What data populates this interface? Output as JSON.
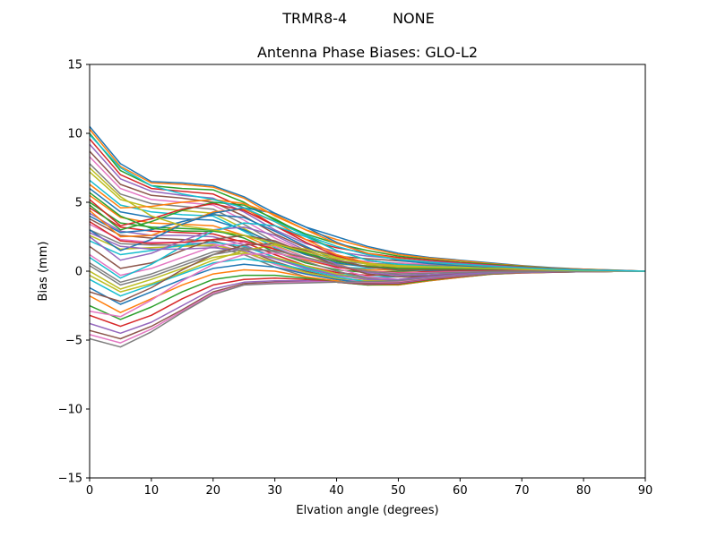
{
  "figure": {
    "suptitle": "TRMR8-4          NONE"
  },
  "chart_data": {
    "type": "line",
    "title": "Antenna Phase Biases: GLO-L2",
    "xlabel": "Elvation angle (degrees)",
    "ylabel": "Bias (mm)",
    "xlim": [
      0,
      90
    ],
    "ylim": [
      -15,
      15
    ],
    "xticks": [
      0,
      10,
      20,
      30,
      40,
      50,
      60,
      70,
      80,
      90
    ],
    "xtick_labels": [
      "0",
      "10",
      "20",
      "30",
      "40",
      "50",
      "60",
      "70",
      "80",
      "90"
    ],
    "yticks": [
      -15,
      -10,
      -5,
      0,
      5,
      10,
      15
    ],
    "ytick_labels": [
      "−15",
      "−10",
      "−5",
      "0",
      "5",
      "10",
      "15"
    ],
    "grid": false,
    "legend": "none",
    "colors": [
      "#1f77b4",
      "#ff7f0e",
      "#2ca02c",
      "#d62728",
      "#9467bd",
      "#8c564b",
      "#e377c2",
      "#7f7f7f",
      "#bcbd22",
      "#17becf"
    ],
    "x": [
      0,
      5,
      10,
      15,
      20,
      25,
      30,
      35,
      40,
      45,
      50,
      55,
      60,
      65,
      70,
      75,
      80,
      85,
      90
    ],
    "series": [
      {
        "values": [
          10.5,
          7.8,
          6.5,
          6.4,
          6.2,
          5.4,
          4.2,
          3.2,
          2.5,
          1.8,
          1.3,
          1.0,
          0.8,
          0.6,
          0.4,
          0.25,
          0.15,
          0.08,
          0.0
        ]
      },
      {
        "values": [
          10.3,
          7.6,
          6.4,
          6.3,
          6.1,
          5.3,
          4.0,
          3.0,
          2.3,
          1.7,
          1.2,
          0.95,
          0.75,
          0.55,
          0.38,
          0.22,
          0.14,
          0.07,
          0.0
        ]
      },
      {
        "values": [
          10.0,
          7.3,
          6.2,
          6.0,
          5.9,
          5.0,
          3.7,
          2.7,
          2.0,
          1.5,
          1.1,
          0.85,
          0.65,
          0.5,
          0.34,
          0.2,
          0.12,
          0.06,
          0.0
        ]
      },
      {
        "values": [
          9.6,
          7.0,
          6.0,
          5.8,
          5.6,
          4.6,
          3.3,
          2.3,
          1.7,
          1.3,
          1.0,
          0.8,
          0.6,
          0.45,
          0.3,
          0.18,
          0.1,
          0.05,
          0.0
        ]
      },
      {
        "values": [
          9.2,
          6.7,
          5.8,
          5.5,
          5.3,
          4.3,
          3.0,
          2.0,
          1.4,
          1.1,
          0.9,
          0.7,
          0.55,
          0.4,
          0.28,
          0.16,
          0.1,
          0.05,
          0.0
        ]
      },
      {
        "values": [
          8.7,
          6.3,
          5.5,
          5.3,
          5.0,
          4.0,
          2.7,
          1.7,
          1.1,
          0.9,
          0.75,
          0.6,
          0.5,
          0.35,
          0.25,
          0.15,
          0.08,
          0.04,
          0.0
        ]
      },
      {
        "values": [
          8.3,
          6.0,
          5.2,
          5.0,
          4.8,
          3.7,
          2.4,
          1.4,
          0.9,
          0.7,
          0.6,
          0.5,
          0.42,
          0.3,
          0.2,
          0.12,
          0.07,
          0.03,
          0.0
        ]
      },
      {
        "values": [
          7.8,
          5.6,
          4.9,
          4.7,
          4.5,
          3.4,
          2.1,
          1.2,
          0.7,
          0.55,
          0.5,
          0.42,
          0.35,
          0.25,
          0.17,
          0.1,
          0.06,
          0.03,
          0.0
        ]
      },
      {
        "values": [
          7.2,
          5.2,
          4.6,
          4.4,
          4.2,
          3.1,
          1.9,
          1.0,
          0.5,
          0.4,
          0.4,
          0.35,
          0.3,
          0.22,
          0.15,
          0.09,
          0.05,
          0.02,
          0.0
        ]
      },
      {
        "values": [
          6.6,
          4.8,
          4.3,
          4.1,
          4.0,
          2.9,
          1.7,
          0.8,
          0.3,
          0.2,
          0.3,
          0.3,
          0.25,
          0.18,
          0.12,
          0.07,
          0.04,
          0.02,
          0.0
        ]
      },
      {
        "values": [
          6.0,
          4.3,
          3.9,
          3.8,
          3.7,
          3.0,
          2.0,
          1.2,
          0.6,
          0.3,
          0.2,
          0.2,
          0.2,
          0.15,
          0.1,
          0.06,
          0.03,
          0.01,
          0.0
        ]
      },
      {
        "values": [
          5.5,
          3.9,
          3.5,
          3.4,
          3.3,
          2.6,
          1.6,
          0.8,
          0.3,
          0.1,
          0.1,
          0.15,
          0.15,
          0.12,
          0.08,
          0.05,
          0.03,
          0.01,
          0.0
        ]
      },
      {
        "values": [
          5.0,
          3.5,
          3.2,
          3.1,
          3.0,
          2.4,
          1.4,
          0.6,
          0.1,
          -0.1,
          0.0,
          0.1,
          0.1,
          0.08,
          0.05,
          0.03,
          0.02,
          0.01,
          0.0
        ]
      },
      {
        "values": [
          4.6,
          3.2,
          2.9,
          2.8,
          2.7,
          2.1,
          1.2,
          0.4,
          -0.1,
          -0.3,
          -0.2,
          0.0,
          0.05,
          0.05,
          0.03,
          0.02,
          0.01,
          0.0,
          0.0
        ]
      },
      {
        "values": [
          4.2,
          2.9,
          2.6,
          2.6,
          2.5,
          1.9,
          1.0,
          0.2,
          -0.3,
          -0.5,
          -0.4,
          -0.15,
          0.0,
          0.02,
          0.01,
          0.01,
          0.0,
          0.0,
          0.0
        ]
      },
      {
        "values": [
          3.8,
          2.6,
          2.4,
          2.3,
          2.2,
          1.6,
          0.7,
          0.0,
          -0.5,
          -0.7,
          -0.6,
          -0.3,
          -0.1,
          -0.05,
          -0.03,
          -0.02,
          -0.01,
          0.0,
          0.0
        ]
      },
      {
        "values": [
          3.4,
          2.3,
          2.1,
          2.1,
          2.0,
          1.4,
          0.5,
          -0.2,
          -0.6,
          -0.8,
          -0.7,
          -0.4,
          -0.2,
          -0.1,
          -0.06,
          -0.04,
          -0.02,
          -0.01,
          0.0
        ]
      },
      {
        "values": [
          3.0,
          2.0,
          1.9,
          1.9,
          1.8,
          1.2,
          0.3,
          -0.4,
          -0.8,
          -1.0,
          -0.9,
          -0.5,
          -0.3,
          -0.15,
          -0.1,
          -0.06,
          -0.03,
          -0.01,
          0.0
        ]
      },
      {
        "values": [
          2.6,
          1.6,
          1.7,
          1.8,
          1.9,
          1.4,
          0.6,
          -0.1,
          -0.5,
          -0.7,
          -0.7,
          -0.45,
          -0.25,
          -0.12,
          -0.08,
          -0.05,
          -0.03,
          -0.01,
          0.0
        ]
      },
      {
        "values": [
          2.2,
          1.2,
          1.5,
          1.9,
          2.1,
          1.8,
          1.0,
          0.3,
          -0.2,
          -0.4,
          -0.4,
          -0.3,
          -0.2,
          -0.1,
          -0.06,
          -0.04,
          -0.02,
          -0.01,
          0.0
        ]
      },
      {
        "values": [
          4.0,
          2.8,
          3.0,
          3.6,
          4.1,
          3.9,
          2.9,
          1.8,
          0.8,
          0.3,
          0.1,
          0.05,
          0.05,
          0.04,
          0.03,
          0.02,
          0.01,
          0.0,
          0.0
        ]
      },
      {
        "values": [
          4.4,
          2.5,
          2.6,
          3.4,
          4.3,
          4.5,
          3.6,
          2.3,
          1.2,
          0.6,
          0.3,
          0.2,
          0.15,
          0.1,
          0.06,
          0.04,
          0.02,
          0.01,
          0.0
        ]
      },
      {
        "values": [
          4.8,
          3.0,
          3.6,
          4.4,
          5.0,
          4.8,
          3.8,
          2.6,
          1.5,
          0.8,
          0.5,
          0.35,
          0.25,
          0.18,
          0.12,
          0.07,
          0.04,
          0.02,
          0.0
        ]
      },
      {
        "values": [
          5.2,
          3.3,
          3.8,
          4.5,
          4.9,
          4.4,
          3.3,
          2.1,
          1.1,
          0.5,
          0.25,
          0.2,
          0.15,
          0.1,
          0.07,
          0.04,
          0.02,
          0.01,
          0.0
        ]
      },
      {
        "values": [
          2.5,
          0.8,
          1.3,
          2.2,
          3.0,
          3.2,
          2.6,
          1.5,
          0.5,
          -0.1,
          -0.3,
          -0.25,
          -0.15,
          -0.08,
          -0.05,
          -0.03,
          -0.02,
          -0.01,
          0.0
        ]
      },
      {
        "values": [
          1.8,
          0.2,
          0.6,
          1.5,
          2.3,
          2.6,
          2.2,
          1.3,
          0.4,
          -0.2,
          -0.4,
          -0.35,
          -0.2,
          -0.1,
          -0.06,
          -0.04,
          -0.02,
          -0.01,
          0.0
        ]
      },
      {
        "values": [
          1.2,
          -0.3,
          0.2,
          1.0,
          1.8,
          2.1,
          1.8,
          1.0,
          0.2,
          -0.4,
          -0.6,
          -0.45,
          -0.25,
          -0.12,
          -0.07,
          -0.04,
          -0.02,
          -0.01,
          0.0
        ]
      },
      {
        "values": [
          0.6,
          -0.8,
          -0.2,
          0.6,
          1.4,
          1.7,
          1.4,
          0.7,
          0.0,
          -0.5,
          -0.7,
          -0.5,
          -0.3,
          -0.15,
          -0.08,
          -0.05,
          -0.03,
          -0.01,
          0.0
        ]
      },
      {
        "values": [
          0.0,
          -1.3,
          -0.6,
          0.2,
          1.0,
          1.3,
          1.0,
          0.4,
          -0.2,
          -0.6,
          -0.8,
          -0.55,
          -0.35,
          -0.18,
          -0.1,
          -0.06,
          -0.03,
          -0.01,
          0.0
        ]
      },
      {
        "values": [
          -0.6,
          -1.8,
          -1.0,
          -0.2,
          0.6,
          0.9,
          0.6,
          0.1,
          -0.4,
          -0.8,
          -0.9,
          -0.6,
          -0.4,
          -0.2,
          -0.12,
          -0.07,
          -0.04,
          -0.02,
          0.0
        ]
      },
      {
        "values": [
          -1.2,
          -2.4,
          -1.5,
          -0.6,
          0.2,
          0.5,
          0.3,
          -0.2,
          -0.6,
          -0.9,
          -1.0,
          -0.7,
          -0.45,
          -0.22,
          -0.13,
          -0.08,
          -0.04,
          -0.02,
          0.0
        ]
      },
      {
        "values": [
          -1.8,
          -3.0,
          -2.0,
          -1.0,
          -0.2,
          0.1,
          0.0,
          -0.4,
          -0.7,
          -1.0,
          -1.0,
          -0.7,
          -0.45,
          -0.22,
          -0.13,
          -0.08,
          -0.04,
          -0.02,
          0.0
        ]
      },
      {
        "values": [
          -2.5,
          -3.5,
          -2.6,
          -1.5,
          -0.6,
          -0.3,
          -0.3,
          -0.5,
          -0.8,
          -1.0,
          -0.95,
          -0.65,
          -0.4,
          -0.2,
          -0.12,
          -0.07,
          -0.04,
          -0.02,
          0.0
        ]
      },
      {
        "values": [
          -3.2,
          -4.0,
          -3.2,
          -2.0,
          -1.0,
          -0.6,
          -0.5,
          -0.6,
          -0.8,
          -0.95,
          -0.9,
          -0.6,
          -0.38,
          -0.18,
          -0.11,
          -0.07,
          -0.04,
          -0.02,
          0.0
        ]
      },
      {
        "values": [
          -3.8,
          -4.5,
          -3.7,
          -2.5,
          -1.3,
          -0.8,
          -0.7,
          -0.7,
          -0.8,
          -0.9,
          -0.85,
          -0.55,
          -0.35,
          -0.17,
          -0.1,
          -0.06,
          -0.03,
          -0.01,
          0.0
        ]
      },
      {
        "values": [
          -4.3,
          -4.9,
          -4.0,
          -2.8,
          -1.5,
          -0.9,
          -0.8,
          -0.8,
          -0.8,
          -0.85,
          -0.8,
          -0.5,
          -0.32,
          -0.16,
          -0.1,
          -0.06,
          -0.03,
          -0.01,
          0.0
        ]
      },
      {
        "values": [
          -4.6,
          -5.2,
          -4.2,
          -2.9,
          -1.6,
          -1.0,
          -0.85,
          -0.8,
          -0.8,
          -0.8,
          -0.75,
          -0.48,
          -0.3,
          -0.15,
          -0.09,
          -0.05,
          -0.03,
          -0.01,
          0.0
        ]
      },
      {
        "values": [
          -4.9,
          -5.5,
          -4.4,
          -3.0,
          -1.7,
          -1.0,
          -0.9,
          -0.85,
          -0.8,
          -0.75,
          -0.7,
          -0.45,
          -0.28,
          -0.14,
          -0.08,
          -0.05,
          -0.03,
          -0.01,
          0.0
        ]
      },
      {
        "values": [
          -0.3,
          -1.5,
          -0.9,
          -0.1,
          0.8,
          1.5,
          1.9,
          1.6,
          1.0,
          0.5,
          0.3,
          0.25,
          0.2,
          0.15,
          0.1,
          0.06,
          0.03,
          0.01,
          0.0
        ]
      },
      {
        "values": [
          1.0,
          -0.5,
          0.5,
          1.8,
          2.9,
          3.5,
          3.3,
          2.5,
          1.5,
          0.8,
          0.5,
          0.35,
          0.25,
          0.18,
          0.12,
          0.07,
          0.04,
          0.02,
          0.0
        ]
      },
      {
        "values": [
          3.0,
          1.5,
          2.3,
          3.4,
          4.2,
          4.6,
          4.2,
          3.2,
          2.1,
          1.3,
          0.8,
          0.55,
          0.4,
          0.28,
          0.18,
          0.1,
          0.06,
          0.03,
          0.0
        ]
      },
      {
        "values": [
          6.3,
          4.6,
          4.7,
          5.0,
          5.2,
          4.9,
          4.1,
          3.0,
          2.0,
          1.3,
          0.9,
          0.65,
          0.48,
          0.34,
          0.22,
          0.13,
          0.07,
          0.03,
          0.0
        ]
      },
      {
        "values": [
          5.7,
          4.0,
          3.1,
          2.9,
          2.9,
          2.6,
          2.0,
          1.3,
          0.7,
          0.35,
          0.2,
          0.18,
          0.15,
          0.11,
          0.07,
          0.04,
          0.02,
          0.01,
          0.0
        ]
      },
      {
        "values": [
          3.6,
          2.2,
          2.0,
          2.1,
          2.3,
          2.2,
          1.6,
          0.9,
          0.3,
          0.0,
          -0.1,
          -0.05,
          0.0,
          0.0,
          0.0,
          0.0,
          0.0,
          0.0,
          0.0
        ]
      },
      {
        "values": [
          2.8,
          1.8,
          1.6,
          1.6,
          1.7,
          1.5,
          0.9,
          0.2,
          -0.3,
          -0.6,
          -0.6,
          -0.4,
          -0.22,
          -0.1,
          -0.06,
          -0.04,
          -0.02,
          -0.01,
          0.0
        ]
      },
      {
        "values": [
          -1.5,
          -2.2,
          -1.2,
          0.1,
          1.2,
          1.9,
          2.0,
          1.5,
          0.8,
          0.3,
          0.1,
          0.1,
          0.1,
          0.07,
          0.05,
          0.03,
          0.02,
          0.01,
          0.0
        ]
      },
      {
        "values": [
          -2.9,
          -3.3,
          -2.1,
          -0.7,
          0.5,
          1.2,
          1.3,
          0.9,
          0.4,
          0.0,
          -0.15,
          -0.1,
          -0.05,
          -0.03,
          -0.02,
          -0.01,
          -0.01,
          0.0,
          0.0
        ]
      },
      {
        "values": [
          0.4,
          -1.0,
          -0.4,
          0.4,
          1.2,
          1.6,
          1.5,
          1.0,
          0.4,
          0.0,
          -0.2,
          -0.15,
          -0.08,
          -0.04,
          -0.03,
          -0.02,
          -0.01,
          0.0,
          0.0
        ]
      },
      {
        "values": [
          7.5,
          5.4,
          4.0,
          3.3,
          3.0,
          2.6,
          2.0,
          1.4,
          0.9,
          0.55,
          0.4,
          0.32,
          0.26,
          0.2,
          0.13,
          0.08,
          0.04,
          0.02,
          0.0
        ]
      },
      {
        "values": [
          9.9,
          7.5,
          6.2,
          5.6,
          5.2,
          4.6,
          3.6,
          2.6,
          1.8,
          1.2,
          0.85,
          0.65,
          0.5,
          0.36,
          0.24,
          0.14,
          0.08,
          0.04,
          0.0
        ]
      }
    ]
  }
}
